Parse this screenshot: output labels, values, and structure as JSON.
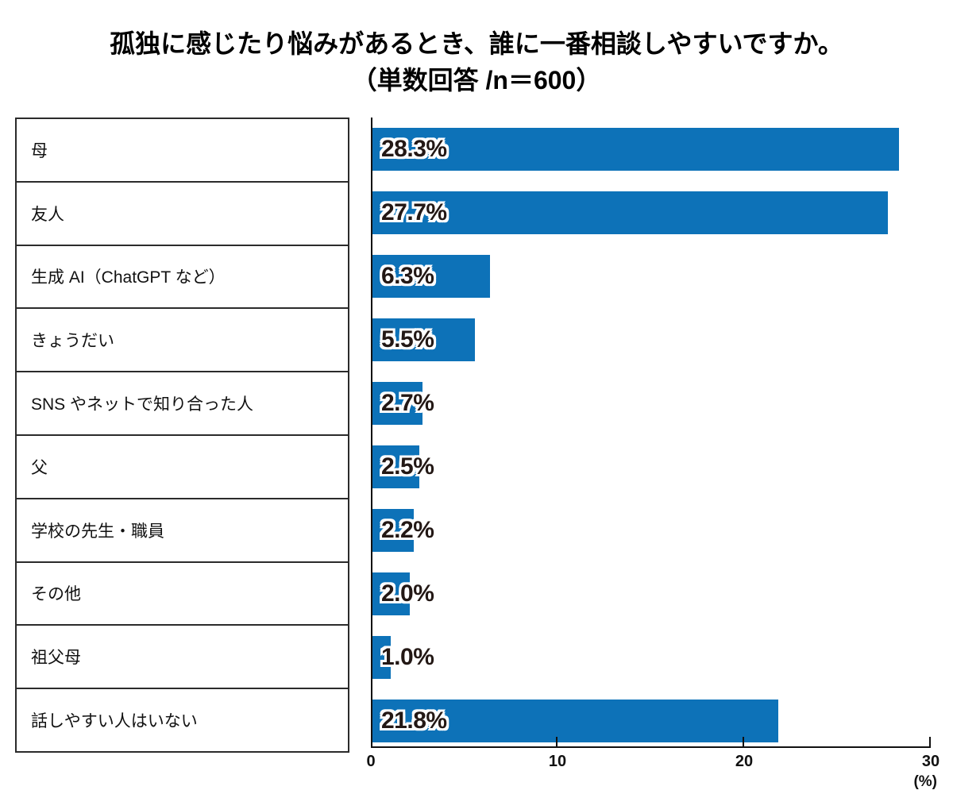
{
  "title": {
    "line1": "孤独に感じたり悩みがあるとき、誰に一番相談しやすいですか。",
    "line2": "（単数回答 /n＝600）"
  },
  "chart_data": {
    "type": "bar",
    "orientation": "horizontal",
    "title": "孤独に感じたり悩みがあるとき、誰に一番相談しやすいですか。（単数回答 /n＝600）",
    "sample_note": "単数回答 /n＝600",
    "categories": [
      "母",
      "友人",
      "生成 AI（ChatGPT など）",
      "きょうだい",
      "SNS やネットで知り合った人",
      "父",
      "学校の先生・職員",
      "その他",
      "祖父母",
      "話しやすい人はいない"
    ],
    "values": [
      28.3,
      27.7,
      6.3,
      5.5,
      2.7,
      2.5,
      2.2,
      2.0,
      1.0,
      21.8
    ],
    "value_labels": [
      "28.3%",
      "27.7%",
      "6.3%",
      "5.5%",
      "2.7%",
      "2.5%",
      "2.2%",
      "2.0%",
      "1.0%",
      "21.8%"
    ],
    "xlim": [
      0,
      30
    ],
    "x_ticks": [
      "0",
      "10",
      "20",
      "30"
    ],
    "x_tick_values": [
      0,
      10,
      20,
      30
    ],
    "x_unit_label": "(%)",
    "bar_color": "#0d72b8",
    "value_label_color": "#231815",
    "axis_color": "#111111",
    "grid": false,
    "legend": "none"
  }
}
